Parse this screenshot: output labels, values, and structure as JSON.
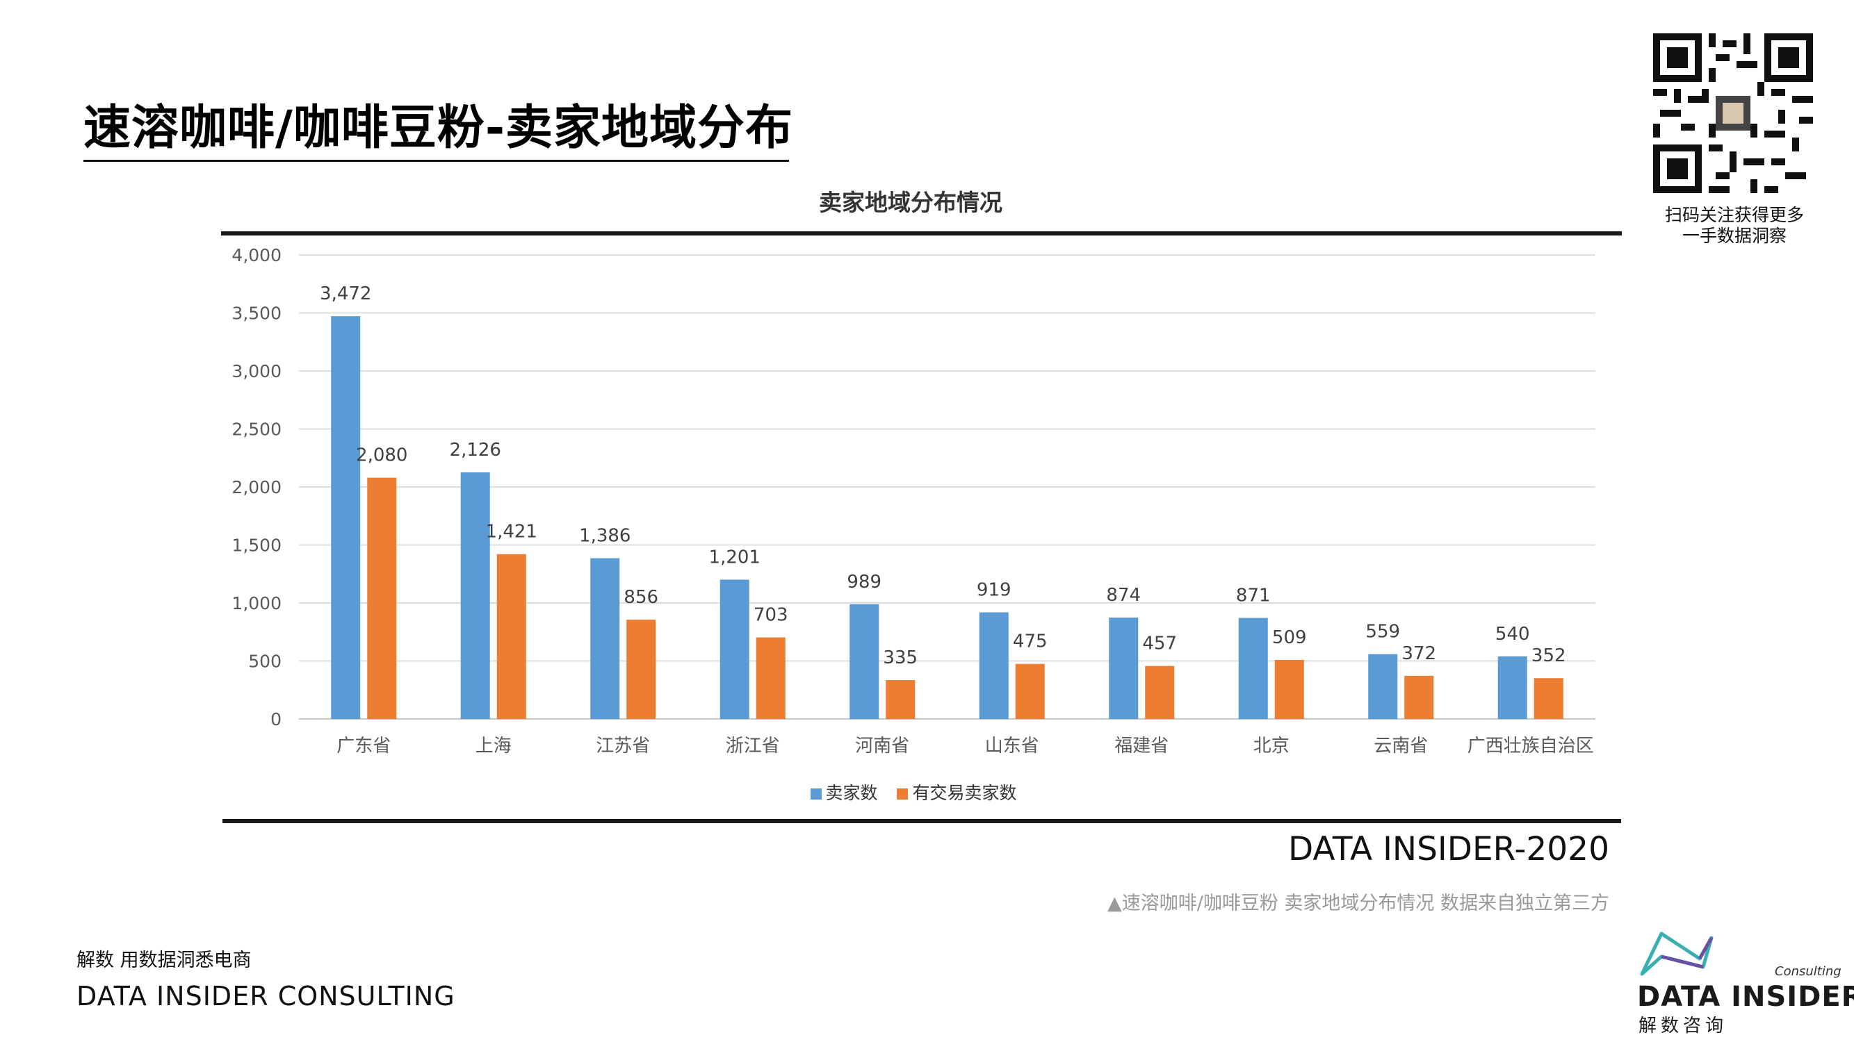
{
  "page": {
    "title": "速溶咖啡/咖啡豆粉-卖家地域分布",
    "qr_caption_line1": "扫码关注获得更多",
    "qr_caption_line2": "一手数据洞察",
    "source_brand": "DATA INSIDER-2020",
    "source_note": "▲速溶咖啡/咖啡豆粉 卖家地域分布情况 数据来自独立第三方",
    "footer_cn": "解数 用数据洞悉电商",
    "footer_en": "DATA INSIDER CONSULTING",
    "logo_tag": "Consulting",
    "logo_name": "DATA INSIDER",
    "logo_cn": "解数咨询"
  },
  "chart_data": {
    "type": "bar",
    "title": "卖家地域分布情况",
    "xlabel": "",
    "ylabel": "",
    "ylim": [
      0,
      4000
    ],
    "yticks": [
      0,
      500,
      1000,
      1500,
      2000,
      2500,
      3000,
      3500,
      4000
    ],
    "ytick_labels": [
      "0",
      "500",
      "1,000",
      "1,500",
      "2,000",
      "2,500",
      "3,000",
      "3,500",
      "4,000"
    ],
    "grid": true,
    "legend_position": "bottom",
    "categories": [
      "广东省",
      "上海",
      "江苏省",
      "浙江省",
      "河南省",
      "山东省",
      "福建省",
      "北京",
      "云南省",
      "广西壮族自治区"
    ],
    "series": [
      {
        "name": "卖家数",
        "color": "#5B9BD5",
        "values": [
          3472,
          2126,
          1386,
          1201,
          989,
          919,
          874,
          871,
          559,
          540
        ],
        "labels": [
          "3,472",
          "2,126",
          "1,386",
          "1,201",
          "989",
          "919",
          "874",
          "871",
          "559",
          "540"
        ]
      },
      {
        "name": "有交易卖家数",
        "color": "#ED7D31",
        "values": [
          2080,
          1421,
          856,
          703,
          335,
          475,
          457,
          509,
          372,
          352
        ],
        "labels": [
          "2,080",
          "1,421",
          "856",
          "703",
          "335",
          "475",
          "457",
          "509",
          "372",
          "352"
        ]
      }
    ]
  }
}
